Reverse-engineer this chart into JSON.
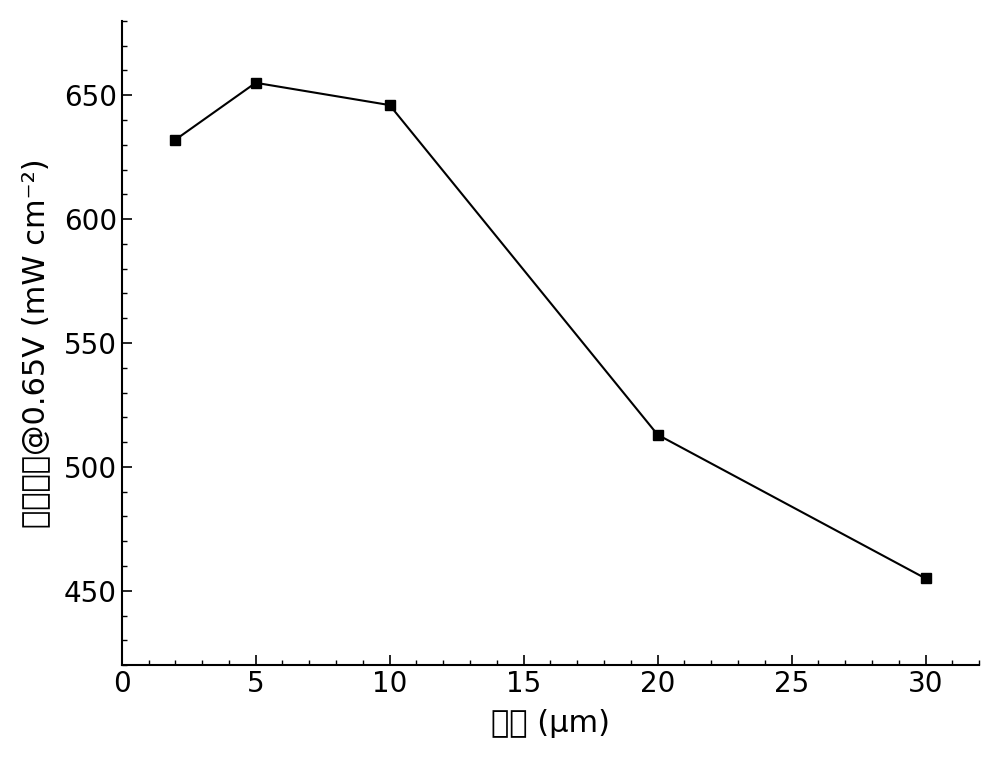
{
  "x": [
    2,
    5,
    10,
    20,
    30
  ],
  "y": [
    632,
    655,
    646,
    513,
    455
  ],
  "xlabel": "厘度 (μm)",
  "ylabel": "功率密度@0.65V (mW cm⁻²)",
  "xlim": [
    0,
    32
  ],
  "ylim": [
    420,
    680
  ],
  "xticks": [
    0,
    5,
    10,
    15,
    20,
    25,
    30
  ],
  "yticks": [
    450,
    500,
    550,
    600,
    650
  ],
  "line_color": "#000000",
  "marker": "s",
  "marker_color": "#000000",
  "marker_size": 7,
  "line_width": 1.5,
  "background_color": "#ffffff",
  "tick_fontsize": 20,
  "label_fontsize": 22,
  "spine_linewidth": 1.5
}
